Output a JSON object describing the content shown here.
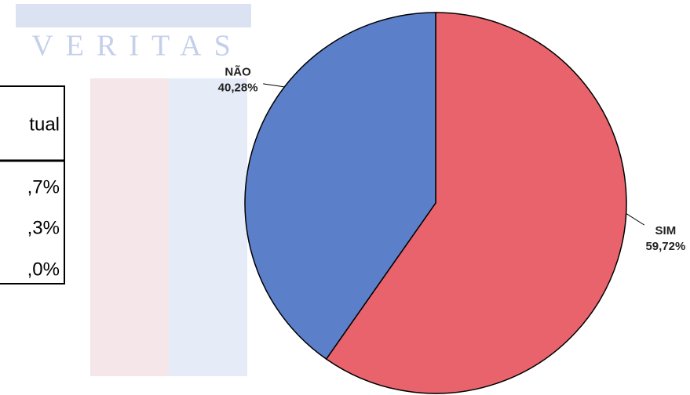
{
  "watermark": "VERITAS",
  "table": {
    "header": "tual",
    "rows": [
      ",7%",
      ",3%",
      ",0%"
    ]
  },
  "chart_data": {
    "type": "pie",
    "categories": [
      "SIM",
      "NÃO"
    ],
    "values": [
      59.72,
      40.28
    ],
    "value_labels": [
      "59,72%",
      "40,28%"
    ],
    "colors": [
      "#e8636b",
      "#5b7fc9"
    ]
  }
}
